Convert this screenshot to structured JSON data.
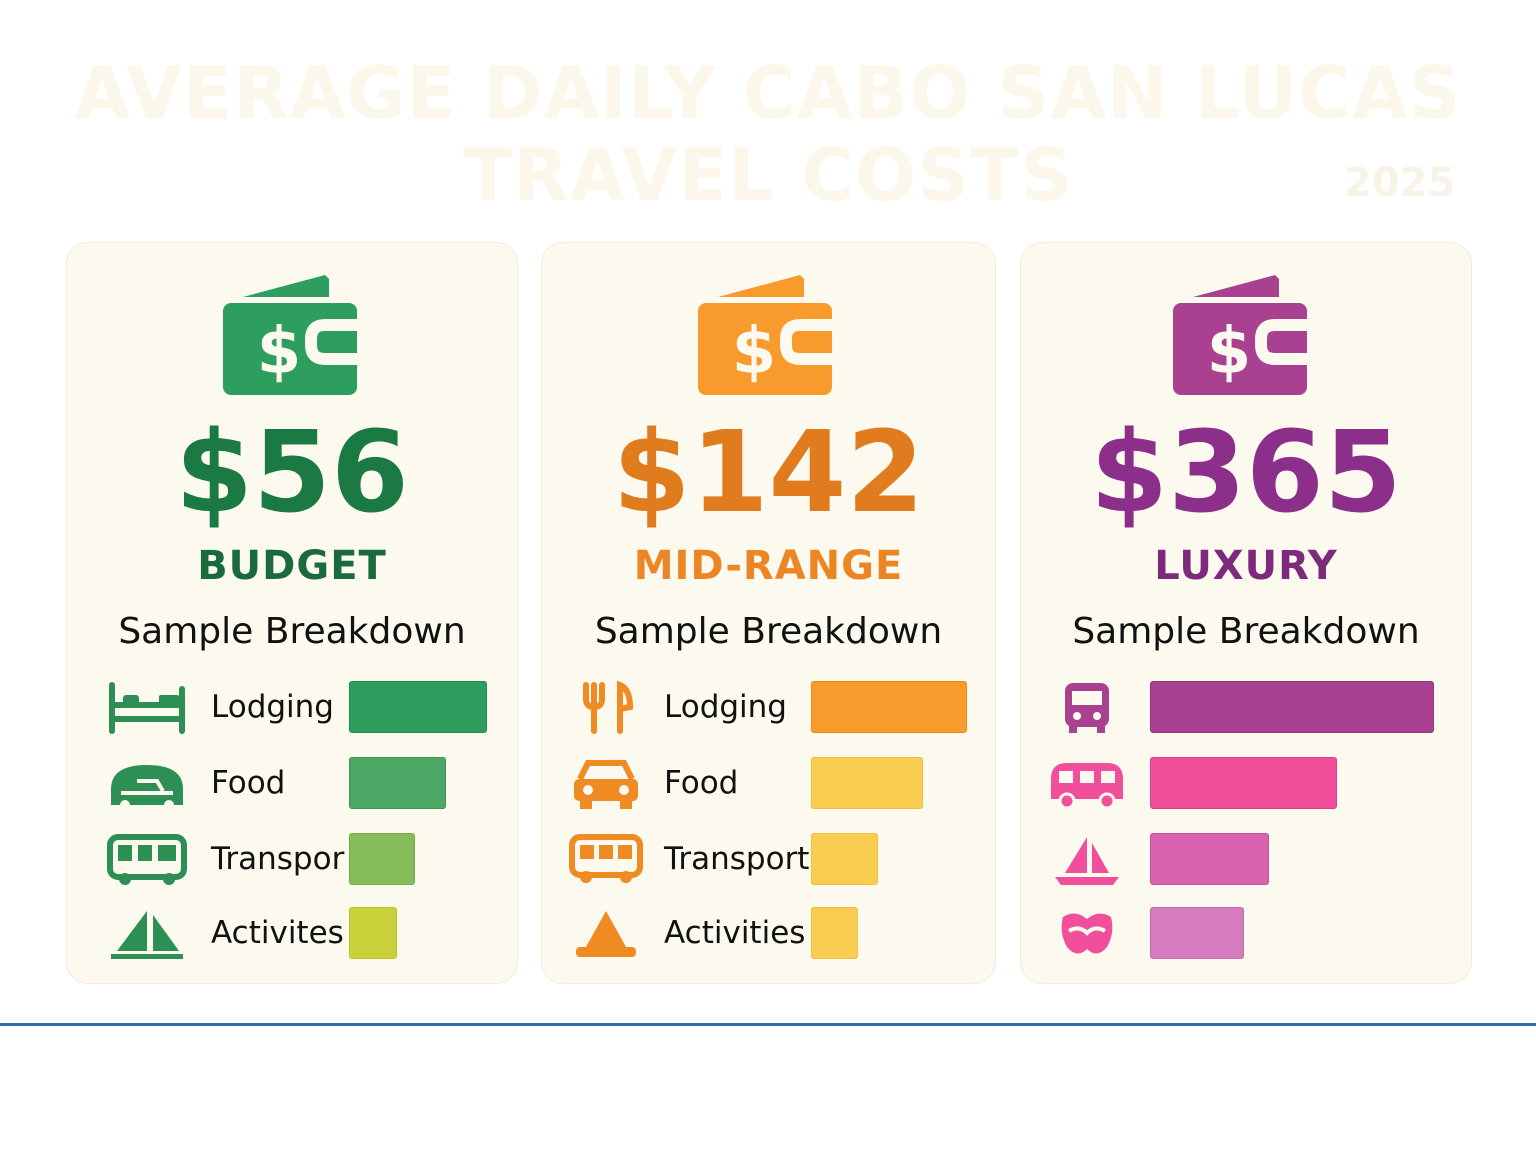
{
  "title": {
    "line1": "AVERAGE DAILY CABO SAN LUCAS",
    "line2": "TRAVEL COSTS",
    "year": "2025"
  },
  "cards": [
    {
      "price": "$56",
      "tier": "BUDGET",
      "subtitle": "Sample Breakdown",
      "accent": "#1b7a44",
      "rows": [
        {
          "label": "Lodging",
          "icon": "bed-icon",
          "bar_color": "#2e9e5e",
          "bar_fraction": 1.0
        },
        {
          "label": "Food",
          "icon": "car-icon",
          "bar_color": "#4ca764",
          "bar_fraction": 0.7
        },
        {
          "label": "Transpor",
          "icon": "bus-icon",
          "bar_color": "#86bd5a",
          "bar_fraction": 0.48
        },
        {
          "label": "Activites",
          "icon": "sailboat-icon",
          "bar_color": "#c9d23a",
          "bar_fraction": 0.35
        }
      ]
    },
    {
      "price": "$142",
      "tier": "MID-RANGE",
      "subtitle": "Sample Breakdown",
      "accent": "#e07b1e",
      "rows": [
        {
          "label": "Lodging",
          "icon": "fork-knife-icon",
          "bar_color": "#f89a2c",
          "bar_fraction": 1.0
        },
        {
          "label": "Food",
          "icon": "car-icon",
          "bar_color": "#f9cd52",
          "bar_fraction": 0.72
        },
        {
          "label": "Transport",
          "icon": "bus-icon",
          "bar_color": "#f9cd52",
          "bar_fraction": 0.43
        },
        {
          "label": "Activities",
          "icon": "tent-icon",
          "bar_color": "#f9cd52",
          "bar_fraction": 0.3
        }
      ]
    },
    {
      "price": "$365",
      "tier": "LUXURY",
      "subtitle": "Sample Breakdown",
      "accent": "#8b2f8a",
      "rows": [
        {
          "label": "",
          "icon": "bus-icon",
          "bar_color": "#a94090",
          "bar_fraction": 1.0
        },
        {
          "label": "",
          "icon": "van-icon",
          "bar_color": "#f14e9c",
          "bar_fraction": 0.66
        },
        {
          "label": "",
          "icon": "sailboat-icon",
          "bar_color": "#d763ae",
          "bar_fraction": 0.42
        },
        {
          "label": "",
          "icon": "mask-icon",
          "bar_color": "#d47cbe",
          "bar_fraction": 0.33
        }
      ]
    }
  ]
}
